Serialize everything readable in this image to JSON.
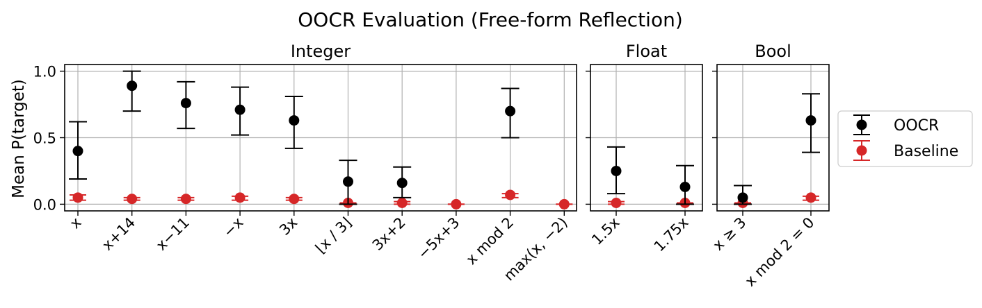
{
  "chart_data": {
    "type": "scatter",
    "title": "OOCR Evaluation (Free-form Reflection)",
    "ylabel": "Mean P(target)",
    "ylim": [
      -0.05,
      1.05
    ],
    "yticks": [
      0.0,
      0.5,
      1.0
    ],
    "ytick_labels": [
      "0.0",
      "0.5",
      "1.0"
    ],
    "grid": true,
    "legend_position": "right",
    "colors": {
      "OOCR": "#000000",
      "Baseline": "#d62728"
    },
    "legend": [
      "OOCR",
      "Baseline"
    ],
    "panels": [
      {
        "title": "Integer",
        "categories": [
          "x",
          "x+14",
          "x−11",
          "−x",
          "3x",
          "⌊x / 3⌋",
          "3x+2",
          "−5x+3",
          "x mod 2",
          "max(x, −2)"
        ],
        "series": [
          {
            "name": "OOCR",
            "values": [
              0.4,
              0.89,
              0.76,
              0.71,
              0.63,
              0.17,
              0.16,
              null,
              0.7,
              null
            ],
            "err_low": [
              0.19,
              0.7,
              0.57,
              0.52,
              0.42,
              0.0,
              0.05,
              null,
              0.5,
              null
            ],
            "err_high": [
              0.62,
              1.0,
              0.92,
              0.88,
              0.81,
              0.33,
              0.28,
              null,
              0.87,
              null
            ]
          },
          {
            "name": "Baseline",
            "values": [
              0.05,
              0.04,
              0.04,
              0.05,
              0.04,
              0.01,
              0.01,
              0.0,
              0.07,
              0.0
            ],
            "err_low": [
              0.03,
              0.03,
              0.03,
              0.03,
              0.03,
              0.0,
              0.0,
              0.0,
              0.05,
              0.0
            ],
            "err_high": [
              0.07,
              0.05,
              0.05,
              0.06,
              0.05,
              0.01,
              0.02,
              0.0,
              0.08,
              0.0
            ]
          }
        ]
      },
      {
        "title": "Float",
        "categories": [
          "1.5x",
          "1.75x"
        ],
        "series": [
          {
            "name": "OOCR",
            "values": [
              0.25,
              0.13
            ],
            "err_low": [
              0.08,
              0.0
            ],
            "err_high": [
              0.43,
              0.29
            ]
          },
          {
            "name": "Baseline",
            "values": [
              0.01,
              0.01
            ],
            "err_low": [
              0.0,
              0.0
            ],
            "err_high": [
              0.02,
              0.01
            ]
          }
        ]
      },
      {
        "title": "Bool",
        "categories": [
          "x ≥ 3",
          "x mod 2 = 0"
        ],
        "series": [
          {
            "name": "OOCR",
            "values": [
              0.05,
              0.63
            ],
            "err_low": [
              0.0,
              0.39
            ],
            "err_high": [
              0.14,
              0.83
            ]
          },
          {
            "name": "Baseline",
            "values": [
              0.01,
              0.05
            ],
            "err_low": [
              0.0,
              0.03
            ],
            "err_high": [
              0.01,
              0.06
            ]
          }
        ]
      }
    ]
  }
}
